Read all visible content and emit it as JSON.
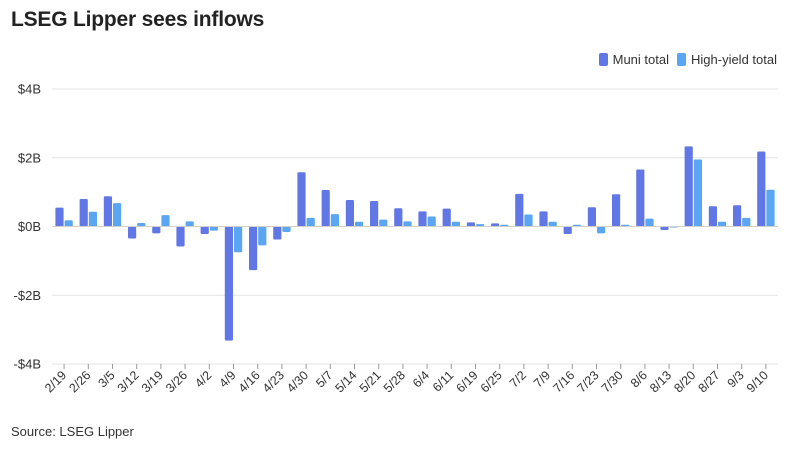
{
  "title": "LSEG Lipper sees inflows",
  "source": "Source: LSEG Lipper",
  "colors": {
    "muni": "#6277e6",
    "high_yield": "#5aa6f2",
    "grid": "#e3e3e3"
  },
  "chart_data": {
    "type": "bar",
    "categories": [
      "2/19",
      "2/26",
      "3/5",
      "3/12",
      "3/19",
      "3/26",
      "4/2",
      "4/9",
      "4/16",
      "4/23",
      "4/30",
      "5/7",
      "5/14",
      "5/21",
      "5/28",
      "6/4",
      "6/11",
      "6/19",
      "6/25",
      "7/2",
      "7/9",
      "7/16",
      "7/23",
      "7/30",
      "8/6",
      "8/13",
      "8/20",
      "8/27",
      "9/3",
      "9/10"
    ],
    "series": [
      {
        "name": "Muni total",
        "values": [
          0.55,
          0.8,
          0.88,
          -0.35,
          -0.2,
          -0.58,
          -0.22,
          -3.32,
          -1.27,
          -0.38,
          1.58,
          1.06,
          0.77,
          0.74,
          0.53,
          0.44,
          0.52,
          0.12,
          0.09,
          0.95,
          0.44,
          -0.22,
          0.56,
          0.94,
          1.66,
          -0.1,
          2.33,
          0.59,
          0.62,
          2.18
        ]
      },
      {
        "name": "High-yield total",
        "values": [
          0.18,
          0.43,
          0.68,
          0.1,
          0.33,
          0.15,
          -0.12,
          -0.75,
          -0.55,
          -0.16,
          0.25,
          0.36,
          0.14,
          0.2,
          0.15,
          0.29,
          0.14,
          0.07,
          0.05,
          0.35,
          0.14,
          0.05,
          -0.2,
          0.05,
          0.23,
          -0.03,
          1.95,
          0.14,
          0.25,
          1.07
        ]
      }
    ],
    "yticks": [
      "$4B",
      "$2B",
      "$0B",
      "-$2B",
      "-$4B"
    ],
    "ytick_values": [
      4,
      2,
      0,
      -2,
      -4
    ],
    "ylim": [
      -4,
      4
    ],
    "xlabel": "",
    "ylabel": "",
    "grid": true,
    "legend_position": "top-right"
  }
}
